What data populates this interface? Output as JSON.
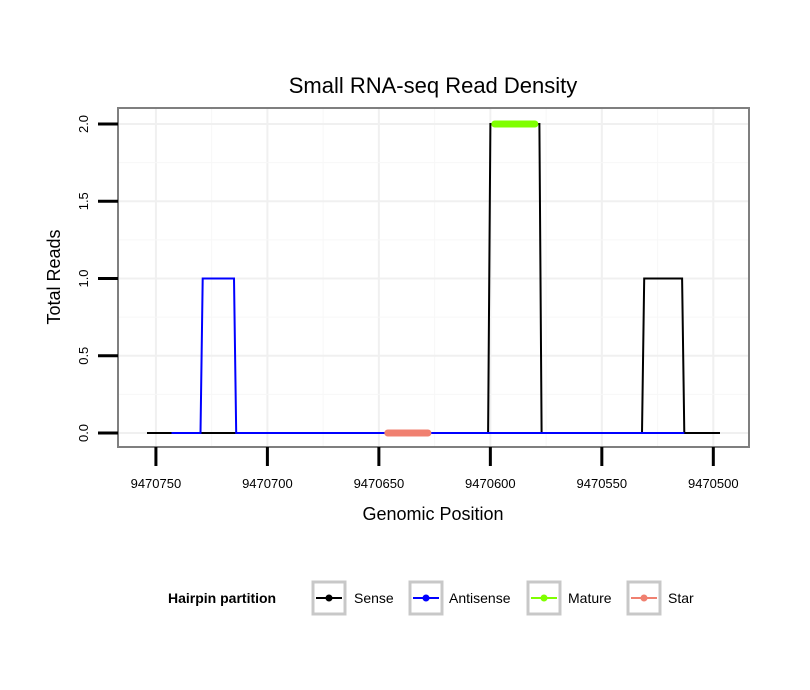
{
  "chart_data": {
    "type": "line",
    "title": "Small RNA-seq Read Density",
    "xlabel": "Genomic Position",
    "ylabel": "Total Reads",
    "xlim": [
      9470754,
      9470497
    ],
    "ylim": [
      -0.1,
      2.1
    ],
    "x_reversed": true,
    "grid": true,
    "x_ticks": [
      9470750,
      9470700,
      9470650,
      9470600,
      9470550,
      9470500
    ],
    "y_ticks": [
      0.0,
      0.5,
      1.0,
      1.5,
      2.0
    ],
    "y_tick_labels": [
      "0.0",
      "0.5",
      "1.0",
      "1.5",
      "2.0"
    ],
    "legend": {
      "title": "Hairpin partition",
      "position": "bottom",
      "entries": [
        {
          "name": "Sense",
          "color": "#000000"
        },
        {
          "name": "Antisense",
          "color": "#0000ff"
        },
        {
          "name": "Mature",
          "color": "#7fff00"
        },
        {
          "name": "Star",
          "color": "#f08070"
        }
      ]
    },
    "series": [
      {
        "name": "Sense",
        "color": "#000000",
        "width": 2,
        "x": [
          9470754,
          9470601,
          9470600,
          9470578,
          9470577,
          9470532,
          9470531,
          9470514,
          9470513,
          9470497
        ],
        "y": [
          0,
          0,
          2,
          2,
          0,
          0,
          1,
          1,
          0,
          0
        ]
      },
      {
        "name": "Antisense",
        "color": "#0000ff",
        "width": 2,
        "x": [
          9470743,
          9470730,
          9470729,
          9470715,
          9470714,
          9470601,
          9470577,
          9470531,
          9470513
        ],
        "y": [
          0,
          0,
          1,
          1,
          0,
          0,
          0,
          0,
          0
        ]
      },
      {
        "name": "Mature",
        "color": "#7fff00",
        "width": 7,
        "x": [
          9470598,
          9470580
        ],
        "y": [
          2,
          2
        ]
      },
      {
        "name": "Star",
        "color": "#f08070",
        "width": 7,
        "x": [
          9470646,
          9470628
        ],
        "y": [
          0,
          0
        ]
      }
    ]
  }
}
